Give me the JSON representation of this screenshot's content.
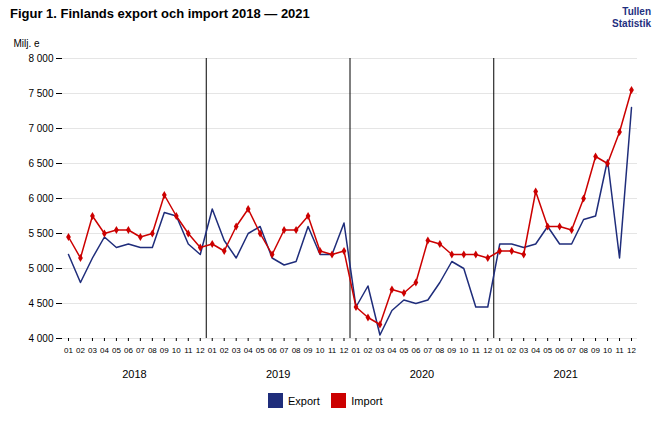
{
  "chart_data": {
    "type": "line",
    "title": "Figur 1. Finlands export och import 2018 — 2021",
    "y_label": "Milj. e",
    "annotations": [
      "Tullen\nStatistik"
    ],
    "groups": [
      "2018",
      "2019",
      "2020",
      "2021"
    ],
    "categories": [
      "01",
      "02",
      "03",
      "04",
      "05",
      "06",
      "07",
      "08",
      "09",
      "10",
      "11",
      "12",
      "01",
      "02",
      "03",
      "04",
      "05",
      "06",
      "07",
      "08",
      "09",
      "10",
      "11",
      "12",
      "01",
      "02",
      "03",
      "04",
      "05",
      "06",
      "07",
      "08",
      "09",
      "10",
      "11",
      "12",
      "01",
      "02",
      "03",
      "04",
      "05",
      "06",
      "07",
      "08",
      "09",
      "10",
      "11",
      "12"
    ],
    "series": [
      {
        "name": "Export",
        "color": "#1f2d7b",
        "line_style": "solid",
        "values": [
          5200,
          4800,
          5150,
          5450,
          5300,
          5350,
          5300,
          5300,
          5800,
          5750,
          5350,
          5200,
          5850,
          5400,
          5150,
          5500,
          5600,
          5150,
          5050,
          5100,
          5600,
          5200,
          5200,
          5650,
          4450,
          4750,
          4050,
          4400,
          4550,
          4500,
          4550,
          4800,
          5100,
          5000,
          4450,
          4450,
          5350,
          5350,
          5300,
          5350,
          5600,
          5350,
          5350,
          5700,
          5750,
          6550,
          5150,
          7300
        ]
      },
      {
        "name": "Import",
        "color": "#cc0000",
        "line_style": "solid",
        "marker": "diamond",
        "values": [
          5450,
          5150,
          5750,
          5500,
          5550,
          5550,
          5450,
          5500,
          6050,
          5750,
          5500,
          5300,
          5350,
          5250,
          5600,
          5850,
          5500,
          5200,
          5550,
          5550,
          5750,
          5250,
          5200,
          5250,
          4450,
          4300,
          4200,
          4700,
          4650,
          4800,
          5400,
          5350,
          5200,
          5200,
          5200,
          5150,
          5250,
          5250,
          5200,
          6100,
          5600,
          5600,
          5550,
          6000,
          6600,
          6500,
          6950,
          7550
        ]
      }
    ],
    "ylim": [
      4000,
      8000
    ],
    "yticks": [
      {
        "value": 4000,
        "label": "4 000"
      },
      {
        "value": 4500,
        "label": "4 500"
      },
      {
        "value": 5000,
        "label": "5 000"
      },
      {
        "value": 5500,
        "label": "5 500"
      },
      {
        "value": 6000,
        "label": "6 000"
      },
      {
        "value": 6500,
        "label": "6 500"
      },
      {
        "value": 7000,
        "label": "7 000"
      },
      {
        "value": 7500,
        "label": "7 500"
      },
      {
        "value": 8000,
        "label": "8 000"
      }
    ],
    "grid": true,
    "legend": "bottom"
  }
}
